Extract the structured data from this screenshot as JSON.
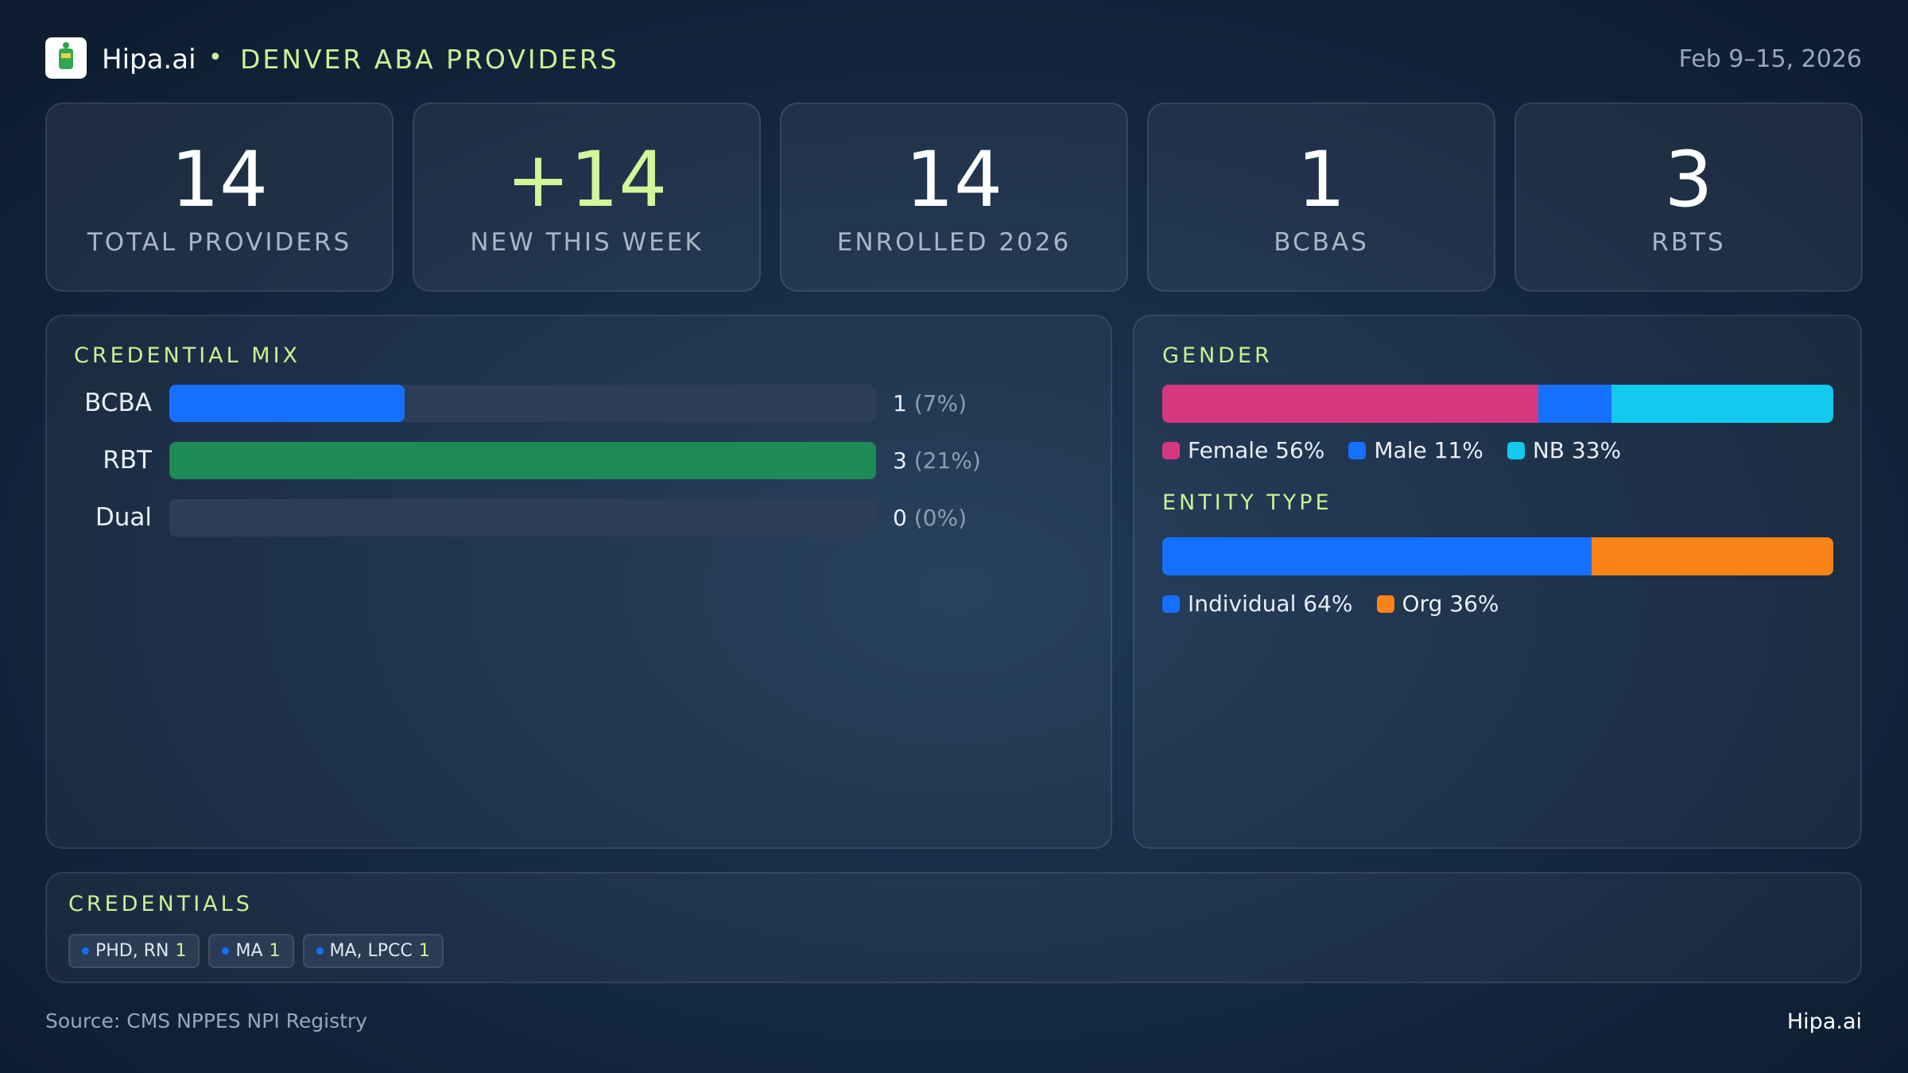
{
  "header": {
    "brand": "Hipa.ai",
    "separator": "•",
    "title": "DENVER ABA PROVIDERS",
    "date": "Feb 9–15, 2026"
  },
  "kpis": [
    {
      "value": "14",
      "label": "TOTAL PROVIDERS"
    },
    {
      "value": "+14",
      "label": "NEW THIS WEEK"
    },
    {
      "value": "14",
      "label": "ENROLLED 2026"
    },
    {
      "value": "1",
      "label": "BCBAS"
    },
    {
      "value": "3",
      "label": "RBTS"
    }
  ],
  "credential_mix": {
    "title": "CREDENTIAL MIX",
    "categories": [
      "BCBA",
      "RBT",
      "Dual"
    ],
    "values": [
      1,
      3,
      0
    ],
    "percent_labels": [
      "(7%)",
      "(21%)",
      "(0%)"
    ],
    "colors": [
      "#1570ff",
      "#1e8a55",
      "#1570ff"
    ]
  },
  "gender": {
    "title": "GENDER",
    "series": [
      {
        "name": "Female",
        "value": 56,
        "value_label": "56%",
        "color": "#d6387f"
      },
      {
        "name": "Male",
        "value": 11,
        "value_label": "11%",
        "color": "#1570ff"
      },
      {
        "name": "NB",
        "value": 33,
        "value_label": "33%",
        "color": "#12c9ee"
      }
    ]
  },
  "entity_type": {
    "title": "ENTITY TYPE",
    "series": [
      {
        "name": "Individual",
        "value": 64,
        "value_label": "64%",
        "color": "#1570ff"
      },
      {
        "name": "Org",
        "value": 36,
        "value_label": "36%",
        "color": "#fb8317"
      }
    ]
  },
  "credentials": {
    "title": "CREDENTIALS",
    "items": [
      {
        "name": "PHD, RN",
        "count": 1
      },
      {
        "name": "MA",
        "count": 1
      },
      {
        "name": "MA, LPCC",
        "count": 1
      }
    ]
  },
  "footer": {
    "source": "Source: CMS NPPES NPI Registry",
    "brand": "Hipa.ai"
  }
}
